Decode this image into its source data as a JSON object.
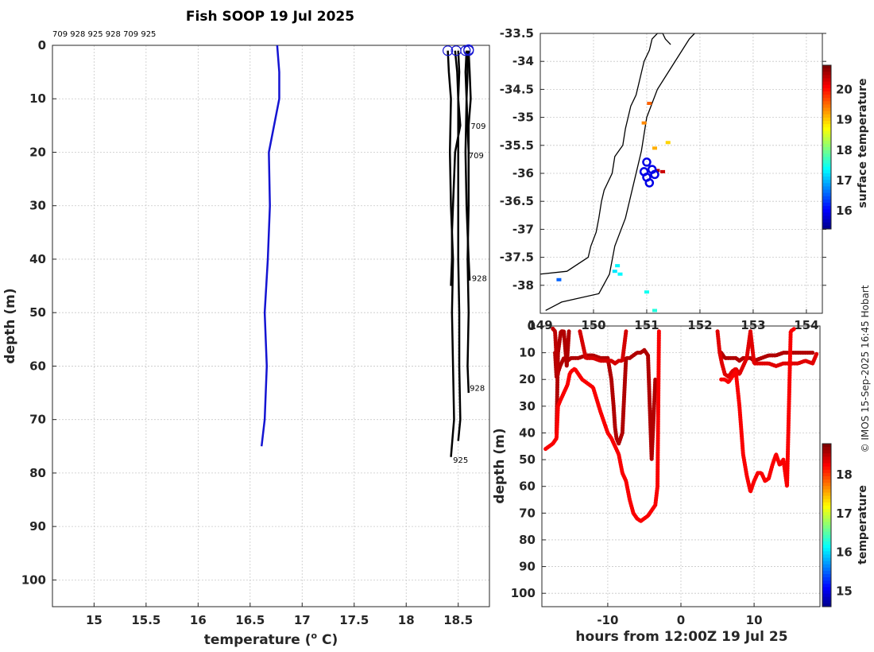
{
  "title": "Fish SOOP 19 Jul 2025",
  "copyright": "© IMOS 15-Sep-2025 16:45 Hobart",
  "chart_data": [
    {
      "id": "profile",
      "type": "line",
      "xlabel": "temperature (",
      "xlabel_unit": "o",
      "xlabel_tail": " C)",
      "ylabel": "depth (m)",
      "xlim": [
        14.6,
        18.8
      ],
      "ylim": [
        0,
        105
      ],
      "xticks": [
        15,
        15.5,
        16,
        16.5,
        17,
        17.5,
        18,
        18.5
      ],
      "xtick_labels": [
        "15",
        "15.5",
        "16",
        "16.5",
        "17",
        "17.5",
        "18",
        "18.5"
      ],
      "yticks": [
        0,
        10,
        20,
        30,
        40,
        50,
        60,
        70,
        80,
        90,
        100
      ],
      "ytick_labels": [
        "0",
        "10",
        "20",
        "30",
        "40",
        "50",
        "60",
        "70",
        "80",
        "90",
        "100"
      ],
      "top_ids_label": "709 928 925 928 709 925",
      "climatology": {
        "color": "#1414d2",
        "depth": [
          0,
          5,
          10,
          20,
          30,
          40,
          50,
          60,
          70,
          75
        ],
        "temp": [
          16.76,
          16.78,
          16.78,
          16.68,
          16.69,
          16.67,
          16.64,
          16.66,
          16.64,
          16.61
        ]
      },
      "profiles": [
        {
          "id": "709",
          "depth": [
            1,
            5,
            10,
            15,
            20,
            25,
            30,
            35,
            40,
            45
          ],
          "temp": [
            18.47,
            18.49,
            18.5,
            18.52,
            18.47,
            18.46,
            18.45,
            18.44,
            18.44,
            18.43
          ]
        },
        {
          "id": "928",
          "depth": [
            1,
            5,
            10,
            15,
            20,
            30,
            40,
            50,
            60,
            65
          ],
          "temp": [
            18.6,
            18.61,
            18.62,
            18.6,
            18.6,
            18.6,
            18.59,
            18.6,
            18.59,
            18.6
          ]
        },
        {
          "id": "925",
          "depth": [
            1,
            5,
            10,
            20,
            30,
            40,
            50,
            60,
            70,
            77
          ],
          "temp": [
            18.4,
            18.41,
            18.43,
            18.42,
            18.43,
            18.45,
            18.44,
            18.45,
            18.46,
            18.43
          ]
        },
        {
          "id": "928",
          "depth": [
            1,
            5,
            10,
            20,
            30,
            40,
            44
          ],
          "temp": [
            18.59,
            18.59,
            18.58,
            18.57,
            18.58,
            18.6,
            18.61
          ]
        },
        {
          "id": "709",
          "depth": [
            1,
            5,
            10,
            15,
            20,
            21
          ],
          "temp": [
            18.58,
            18.57,
            18.58,
            18.59,
            18.6,
            18.6
          ]
        },
        {
          "id": "925",
          "depth": [
            1,
            5,
            10,
            20,
            30,
            40,
            50,
            60,
            70,
            74
          ],
          "temp": [
            18.5,
            18.51,
            18.5,
            18.5,
            18.5,
            18.5,
            18.51,
            18.51,
            18.52,
            18.5
          ]
        }
      ],
      "profile_end_labels": [
        {
          "text": "709",
          "temp": 18.62,
          "depth": 15
        },
        {
          "text": "709",
          "temp": 18.6,
          "depth": 20.5
        },
        {
          "text": "928",
          "temp": 18.63,
          "depth": 43.5
        },
        {
          "text": "928",
          "temp": 18.61,
          "depth": 64
        },
        {
          "text": "925",
          "temp": 18.45,
          "depth": 77.5
        }
      ],
      "surface_markers": [
        {
          "temp": 18.4,
          "depth": 1
        },
        {
          "temp": 18.48,
          "depth": 1
        },
        {
          "temp": 18.57,
          "depth": 1
        },
        {
          "temp": 18.6,
          "depth": 1
        },
        {
          "temp": 18.6,
          "depth": 0.8
        }
      ]
    },
    {
      "id": "map",
      "type": "scatter",
      "ylabel": "",
      "xlim": [
        149.0,
        154.3
      ],
      "ylim": [
        -38.5,
        -33.5
      ],
      "xticks": [
        149,
        150,
        151,
        152,
        153,
        154
      ],
      "xtick_labels": [
        "149",
        "150",
        "151",
        "152",
        "153",
        "154"
      ],
      "yticks": [
        -33.5,
        -34,
        -34.5,
        -35,
        -35.5,
        -36,
        -36.5,
        -37,
        -37.5,
        -38
      ],
      "ytick_labels": [
        "-33.5",
        "-34",
        "-34.5",
        "-35",
        "-35.5",
        "-36",
        "-36.5",
        "-37",
        "-37.5",
        "-38"
      ],
      "colorbar_label": "surface temperature",
      "colorbar_ticks": [
        "16",
        "17",
        "18",
        "19",
        "20"
      ],
      "colorbar_range": [
        15.4,
        20.8
      ],
      "coastline_lon": [
        149.0,
        149.5,
        149.9,
        149.95,
        150.05,
        150.1,
        150.15,
        150.2,
        150.35,
        150.4,
        150.55,
        150.6,
        150.65,
        150.7,
        150.8,
        150.85,
        150.9,
        150.95,
        151.05,
        151.1,
        151.2,
        151.3,
        151.35,
        151.45
      ],
      "coastline_lat": [
        -37.8,
        -37.75,
        -37.5,
        -37.3,
        -37.05,
        -36.8,
        -36.5,
        -36.3,
        -36.0,
        -35.7,
        -35.5,
        -35.2,
        -35.0,
        -34.8,
        -34.6,
        -34.4,
        -34.2,
        -34.0,
        -33.8,
        -33.6,
        -33.5,
        -33.5,
        -33.6,
        -33.7
      ],
      "coastline2_lon": [
        149.1,
        149.4,
        150.1,
        150.3,
        150.4,
        150.6,
        150.75,
        150.9,
        151.0,
        151.2,
        151.4,
        151.6,
        151.8,
        151.9
      ],
      "coastline2_lat": [
        -38.45,
        -38.3,
        -38.15,
        -37.8,
        -37.3,
        -36.8,
        -36.2,
        -35.6,
        -35.0,
        -34.5,
        -34.2,
        -33.9,
        -33.6,
        -33.5
      ],
      "obs": [
        {
          "lon": 151.05,
          "lat": -34.75,
          "temp": 19.6
        },
        {
          "lon": 150.95,
          "lat": -35.1,
          "temp": 19.4
        },
        {
          "lon": 151.15,
          "lat": -35.55,
          "temp": 19.2
        },
        {
          "lon": 151.4,
          "lat": -35.45,
          "temp": 19.0
        },
        {
          "lon": 151.2,
          "lat": -35.95,
          "temp": 20.6
        },
        {
          "lon": 151.3,
          "lat": -35.97,
          "temp": 20.4
        },
        {
          "lon": 149.35,
          "lat": -37.9,
          "temp": 16.6
        },
        {
          "lon": 150.45,
          "lat": -37.65,
          "temp": 17.4
        },
        {
          "lon": 150.4,
          "lat": -37.75,
          "temp": 17.3
        },
        {
          "lon": 150.5,
          "lat": -37.8,
          "temp": 17.4
        },
        {
          "lon": 151.0,
          "lat": -38.12,
          "temp": 17.5
        },
        {
          "lon": 151.15,
          "lat": -38.45,
          "temp": 17.6
        }
      ],
      "stations": [
        {
          "lon": 151.0,
          "lat": -35.8
        },
        {
          "lon": 151.1,
          "lat": -35.93
        },
        {
          "lon": 150.95,
          "lat": -35.97
        },
        {
          "lon": 151.0,
          "lat": -36.07
        },
        {
          "lon": 151.15,
          "lat": -36.02
        },
        {
          "lon": 151.05,
          "lat": -36.17
        }
      ]
    },
    {
      "id": "timedepth",
      "type": "scatter",
      "xlabel": "hours from 12:00Z 19 Jul 25",
      "ylabel": "depth (m)",
      "xlim": [
        -19.0,
        19.0
      ],
      "ylim": [
        0,
        105
      ],
      "xticks": [
        -10,
        0,
        10
      ],
      "xtick_labels": [
        "-10",
        "0",
        "10"
      ],
      "yticks": [
        0,
        10,
        20,
        30,
        40,
        50,
        60,
        70,
        80,
        90,
        100
      ],
      "ytick_labels": [
        "0",
        "10",
        "20",
        "30",
        "40",
        "50",
        "60",
        "70",
        "80",
        "90",
        "100"
      ],
      "colorbar_label": "temperature",
      "colorbar_ticks": [
        "15",
        "16",
        "17",
        "18"
      ],
      "colorbar_range": [
        14.6,
        18.8
      ],
      "tracks": [
        {
          "temp": 18.6,
          "hours": [
            -17.2,
            -17.0,
            -16.5,
            -16.0,
            -15.5,
            -15.0,
            -14.0,
            -13.0,
            -12.0,
            -11.0,
            -10.0,
            -9.5,
            -9.2,
            -9.0,
            -8.8,
            -8.5,
            -8.0,
            -7.5,
            -7.0,
            -6.5,
            -6.0,
            -5.5,
            -5.0,
            -4.5,
            -4.0,
            -3.5
          ],
          "depth": [
            10,
            19,
            15,
            12,
            13,
            12,
            12,
            11,
            11,
            12,
            12,
            20,
            30,
            38,
            42,
            44,
            40,
            12,
            12,
            11,
            10,
            10,
            9,
            11,
            50,
            20
          ]
        },
        {
          "temp": 18.6,
          "hours": [
            -17.0,
            -16.8,
            -16.4,
            -16.0,
            -15.6,
            -15.3
          ],
          "depth": [
            40,
            10,
            2,
            2,
            15,
            2
          ]
        },
        {
          "temp": 18.55,
          "hours": [
            -17.5,
            -17.2,
            -17.0,
            -16.8
          ],
          "depth": [
            1,
            2,
            12,
            18
          ]
        },
        {
          "temp": 18.45,
          "hours": [
            -13.8,
            -13.0,
            -12.0,
            -11.0,
            -10.0,
            -9.5,
            -9.0,
            -8.5,
            -8.0,
            -7.5
          ],
          "depth": [
            2,
            12,
            12,
            13,
            13,
            13,
            14,
            13,
            13,
            2
          ]
        },
        {
          "temp": 18.3,
          "hours": [
            -18.5,
            -18.0,
            -17.5,
            -17.0,
            -16.8,
            -16.5,
            -16.0,
            -15.5,
            -15.2,
            -15.0,
            -14.5,
            -14.0,
            -13.5,
            -13.0,
            -12.5,
            -12.0,
            -11.0,
            -10.0,
            -9.5,
            -9.0,
            -8.5,
            -8.0,
            -7.5,
            -7.0,
            -6.5,
            -6.0,
            -5.5,
            -5.0,
            -4.5,
            -4.0,
            -3.5,
            -3.2,
            -3.0
          ],
          "depth": [
            46,
            45,
            44,
            42,
            30,
            28,
            25,
            22,
            18,
            17,
            16,
            18,
            20,
            21,
            22,
            23,
            32,
            40,
            42,
            45,
            48,
            55,
            58,
            65,
            70,
            72,
            73,
            72,
            71,
            69,
            67,
            60,
            2
          ]
        },
        {
          "temp": 18.6,
          "hours": [
            5.5,
            6.0,
            6.5,
            7.0,
            7.5,
            8.0,
            8.5,
            9.0,
            9.5,
            10.0,
            11.0,
            12.0,
            13.0,
            14.0,
            15.0,
            15.5,
            16.0,
            17.0,
            18.0
          ],
          "depth": [
            10,
            12,
            12,
            12,
            12,
            13,
            12,
            12,
            12,
            13,
            12,
            11,
            11,
            10,
            10,
            10,
            10,
            10,
            10
          ]
        },
        {
          "temp": 18.4,
          "hours": [
            5.0,
            5.3,
            5.6,
            6.0,
            6.5,
            7.0,
            7.5,
            8.0,
            8.5,
            9.0,
            9.5,
            10.0,
            11.0,
            12.0,
            13.0,
            14.0,
            15.0,
            16.0,
            17.0,
            18.0,
            18.6
          ],
          "depth": [
            2,
            10,
            14,
            18,
            19,
            17,
            16,
            18,
            15,
            12,
            2,
            14,
            14,
            14,
            15,
            14,
            14,
            14,
            13,
            14,
            10
          ]
        },
        {
          "temp": 18.3,
          "hours": [
            5.5,
            6.0,
            6.5,
            7.0,
            7.5,
            8.0,
            8.5,
            9.0,
            9.5,
            10.0,
            10.5,
            11.0,
            11.5,
            12.0,
            12.5,
            13.0,
            13.5,
            14.0,
            14.5,
            15.0,
            15.5
          ],
          "depth": [
            20,
            20,
            21,
            19,
            17,
            30,
            48,
            56,
            62,
            58,
            55,
            55,
            58,
            57,
            52,
            48,
            52,
            50,
            60,
            2,
            1
          ]
        }
      ]
    }
  ]
}
